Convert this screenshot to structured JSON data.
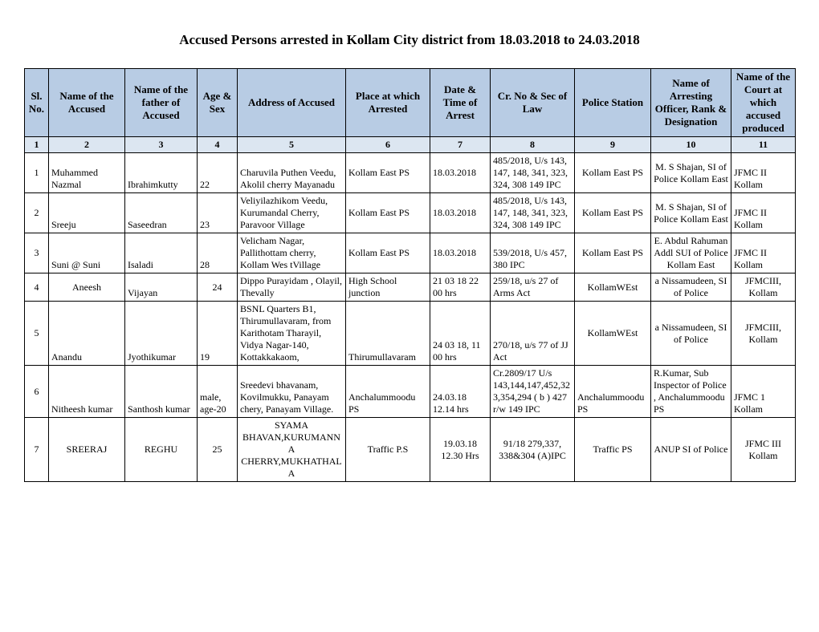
{
  "title": "Accused Persons arrested in    Kollam City   district from   18.03.2018 to 24.03.2018",
  "headers": [
    "Sl. No.",
    "Name of the Accused",
    "Name of the father of Accused",
    "Age & Sex",
    "Address of Accused",
    "Place at which Arrested",
    "Date & Time of Arrest",
    "Cr. No & Sec of Law",
    "Police Station",
    "Name of Arresting Officer, Rank & Designation",
    "Name of the Court at which accused produced"
  ],
  "numrow": [
    "1",
    "2",
    "3",
    "4",
    "5",
    "6",
    "7",
    "8",
    "9",
    "10",
    "11"
  ],
  "rows": [
    {
      "sl": "1",
      "halign": [
        "center",
        "left",
        "left",
        "left",
        "left",
        "left",
        "left",
        "left",
        "center",
        "center",
        "left"
      ],
      "valign": [
        "middle",
        "bottom",
        "bottom",
        "bottom",
        "bottom",
        "middle",
        "middle",
        "bottom",
        "middle",
        "middle",
        "bottom"
      ],
      "cells": [
        "1",
        "Muhammed Nazmal",
        "Ibrahimkutty",
        "22",
        "Charuvila Puthen Veedu, Akolil cherry Mayanadu",
        "Kollam East PS",
        "18.03.2018",
        "485/2018, U/s 143, 147, 148, 341, 323, 324, 308 149 IPC",
        "Kollam East PS",
        "M. S Shajan, SI of Police Kollam East",
        "JFMC II Kollam"
      ]
    },
    {
      "sl": "2",
      "halign": [
        "center",
        "left",
        "left",
        "left",
        "left",
        "left",
        "left",
        "left",
        "center",
        "center",
        "left"
      ],
      "valign": [
        "middle",
        "bottom",
        "bottom",
        "bottom",
        "bottom",
        "middle",
        "middle",
        "bottom",
        "middle",
        "middle",
        "bottom"
      ],
      "cells": [
        "2",
        "Sreeju",
        "Saseedran",
        "23",
        "Veliyilazhikom Veedu, Kurumandal Cherry, Paravoor Village",
        "Kollam East PS",
        "18.03.2018",
        "485/2018, U/s 143, 147, 148, 341, 323, 324, 308 149 IPC",
        "Kollam East PS",
        "M. S Shajan, SI of Police Kollam East",
        "JFMC II Kollam"
      ]
    },
    {
      "sl": "3",
      "halign": [
        "center",
        "left",
        "left",
        "left",
        "left",
        "left",
        "left",
        "left",
        "center",
        "center",
        "left"
      ],
      "valign": [
        "middle",
        "bottom",
        "bottom",
        "bottom",
        "bottom",
        "middle",
        "middle",
        "bottom",
        "middle",
        "middle",
        "bottom"
      ],
      "cells": [
        "3",
        "Suni @ Suni",
        "Isaladi",
        "28",
        "Velicham Nagar, Pallithottam cherry, Kollam Wes tVillage",
        "Kollam East PS",
        "18.03.2018",
        "539/2018, U/s 457, 380 IPC",
        "Kollam East PS",
        "E. Abdul Rahuman Addl SUI of Police Kollam East",
        "JFMC II Kollam"
      ]
    },
    {
      "sl": "4",
      "halign": [
        "center",
        "center",
        "left",
        "center",
        "left",
        "left",
        "left",
        "left",
        "center",
        "center",
        "center"
      ],
      "valign": [
        "middle",
        "middle",
        "bottom",
        "middle",
        "middle",
        "middle",
        "middle",
        "middle",
        "middle",
        "middle",
        "middle"
      ],
      "cells": [
        "4",
        "Aneesh",
        "Vijayan",
        "24",
        "Dippo Purayidam , Olayil, Thevally",
        "High School junction",
        "21 03 18 22 00 hrs",
        "259/18, u/s 27 of Arms Act",
        "KollamWEst",
        "a Nissamudeen, SI of Police",
        "JFMCIII, Kollam"
      ]
    },
    {
      "sl": "5",
      "halign": [
        "center",
        "left",
        "left",
        "left",
        "left",
        "left",
        "left",
        "left",
        "center",
        "center",
        "center"
      ],
      "valign": [
        "middle",
        "bottom",
        "bottom",
        "bottom",
        "bottom",
        "bottom",
        "bottom",
        "bottom",
        "middle",
        "middle",
        "middle"
      ],
      "cells": [
        "5",
        "Anandu",
        "Jyothikumar",
        "19",
        "BSNL Quarters B1, Thirumullavaram, from Karithotam Tharayil, Vidya Nagar-140, Kottakkakaom,",
        "Thirumullavaram",
        "24 03 18, 11 00 hrs",
        "270/18, u/s 77 of JJ Act",
        "KollamWEst",
        "a Nissamudeen, SI of Police",
        "JFMCIII, Kollam"
      ]
    },
    {
      "sl": "6",
      "halign": [
        "center",
        "left",
        "left",
        "left",
        "left",
        "left",
        "left",
        "left",
        "left",
        "left",
        "left"
      ],
      "valign": [
        "middle",
        "bottom",
        "bottom",
        "bottom",
        "bottom",
        "bottom",
        "bottom",
        "bottom",
        "bottom",
        "bottom",
        "bottom"
      ],
      "cells": [
        "6",
        "Nitheesh kumar",
        "Santhosh kumar",
        "male, age-20",
        "Sreedevi bhavanam, Kovilmukku, Panayam chery, Panayam Village.",
        "Anchalummoodu PS",
        "24.03.18 12.14  hrs",
        "Cr.2809/17  U/s 143,144,147,452,323,354,294 ( b ) 427 r/w 149 IPC",
        "Anchalummoodu PS",
        "R.Kumar, Sub Inspector of Police , Anchalummoodu PS",
        "JFMC 1 Kollam"
      ]
    },
    {
      "sl": "7",
      "halign": [
        "center",
        "center",
        "center",
        "center",
        "center",
        "center",
        "center",
        "center",
        "center",
        "center",
        "center"
      ],
      "valign": [
        "middle",
        "middle",
        "middle",
        "middle",
        "middle",
        "middle",
        "middle",
        "middle",
        "middle",
        "middle",
        "middle"
      ],
      "cells": [
        "7",
        "SREERAJ",
        "REGHU",
        "25",
        "SYAMA BHAVAN,KURUMANNA CHERRY,MUKHATHALA",
        "Traffic P.S",
        "19.03.18 12.30  Hrs",
        "91/18 279,337, 338&304 (A)IPC",
        "Traffic PS",
        "ANUP       SI of Police",
        "JFMC III Kollam"
      ]
    }
  ],
  "colors": {
    "header_bg": "#b8cce4",
    "numrow_bg": "#dce6f1",
    "border": "#000000",
    "background": "#ffffff"
  },
  "font": {
    "title_size": 17,
    "header_size": 13,
    "cell_size": 12,
    "family": "Times New Roman"
  }
}
